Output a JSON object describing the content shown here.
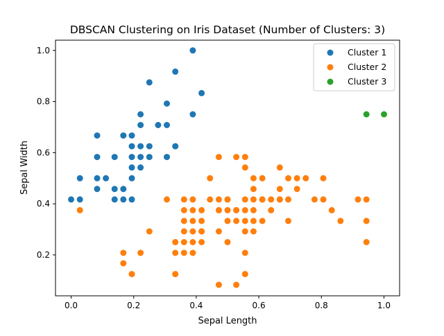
{
  "chart_data": {
    "type": "scatter",
    "title": "DBSCAN Clustering on Iris Dataset (Number of Clusters: 3)",
    "xlabel": "Sepal Length",
    "ylabel": "Sepal Width",
    "xlim": [
      -0.05,
      1.05
    ],
    "ylim": [
      0.04,
      1.04
    ],
    "xticks": [
      0.0,
      0.2,
      0.4,
      0.6,
      0.8,
      1.0
    ],
    "xtick_labels": [
      "0.0",
      "0.2",
      "0.4",
      "0.6",
      "0.8",
      "1.0"
    ],
    "yticks": [
      0.2,
      0.4,
      0.6,
      0.8,
      1.0
    ],
    "ytick_labels": [
      "0.2",
      "0.4",
      "0.6",
      "0.8",
      "1.0"
    ],
    "grid": false,
    "legend_position": "top-right",
    "series": [
      {
        "name": "Cluster 1",
        "color": "#1f77b4",
        "x": [
          0.389,
          0.417,
          0.333,
          0.25,
          0.306,
          0.389,
          0.222,
          0.222,
          0.278,
          0.306,
          0.083,
          0.167,
          0.194,
          0.194,
          0.222,
          0.25,
          0.333,
          0.0,
          0.028,
          0.028,
          0.083,
          0.083,
          0.083,
          0.111,
          0.139,
          0.139,
          0.139,
          0.167,
          0.167,
          0.194,
          0.194,
          0.194,
          0.194,
          0.222,
          0.222,
          0.25,
          0.306
        ],
        "y": [
          1.0,
          0.833,
          0.917,
          0.875,
          0.792,
          0.75,
          0.75,
          0.708,
          0.708,
          0.708,
          0.667,
          0.667,
          0.667,
          0.625,
          0.625,
          0.625,
          0.625,
          0.417,
          0.5,
          0.417,
          0.5,
          0.458,
          0.583,
          0.5,
          0.458,
          0.417,
          0.583,
          0.458,
          0.417,
          0.583,
          0.542,
          0.5,
          0.417,
          0.583,
          0.542,
          0.583,
          0.583
        ]
      },
      {
        "name": "Cluster 2",
        "color": "#ff7f0e",
        "x": [
          0.028,
          0.167,
          0.167,
          0.194,
          0.222,
          0.25,
          0.306,
          0.333,
          0.333,
          0.333,
          0.361,
          0.361,
          0.361,
          0.361,
          0.361,
          0.361,
          0.389,
          0.389,
          0.389,
          0.389,
          0.389,
          0.389,
          0.417,
          0.417,
          0.417,
          0.417,
          0.444,
          0.444,
          0.472,
          0.472,
          0.472,
          0.472,
          0.472,
          0.5,
          0.5,
          0.5,
          0.5,
          0.5,
          0.528,
          0.528,
          0.528,
          0.528,
          0.556,
          0.556,
          0.556,
          0.556,
          0.556,
          0.556,
          0.556,
          0.583,
          0.583,
          0.583,
          0.583,
          0.583,
          0.611,
          0.611,
          0.611,
          0.639,
          0.639,
          0.667,
          0.667,
          0.667,
          0.667,
          0.694,
          0.694,
          0.694,
          0.722,
          0.722,
          0.75,
          0.778,
          0.806,
          0.806,
          0.833,
          0.861,
          0.917,
          0.944,
          0.944,
          0.944,
          0.583,
          0.611,
          0.556,
          0.528,
          0.472,
          0.417
        ],
        "y": [
          0.375,
          0.208,
          0.167,
          0.125,
          0.208,
          0.292,
          0.417,
          0.25,
          0.208,
          0.125,
          0.417,
          0.375,
          0.333,
          0.292,
          0.25,
          0.208,
          0.417,
          0.375,
          0.333,
          0.292,
          0.25,
          0.208,
          0.333,
          0.292,
          0.25,
          0.292,
          0.5,
          0.417,
          0.583,
          0.417,
          0.375,
          0.292,
          0.083,
          0.417,
          0.375,
          0.333,
          0.25,
          0.417,
          0.583,
          0.375,
          0.333,
          0.083,
          0.583,
          0.542,
          0.375,
          0.333,
          0.292,
          0.208,
          0.125,
          0.5,
          0.458,
          0.375,
          0.333,
          0.292,
          0.5,
          0.417,
          0.333,
          0.417,
          0.375,
          0.542,
          0.458,
          0.417,
          0.417,
          0.5,
          0.417,
          0.333,
          0.5,
          0.458,
          0.5,
          0.417,
          0.5,
          0.417,
          0.375,
          0.333,
          0.417,
          0.417,
          0.333,
          0.25,
          0.417,
          0.417,
          0.417,
          0.375,
          0.375,
          0.375
        ]
      },
      {
        "name": "Cluster 3",
        "color": "#2ca02c",
        "x": [
          0.944,
          1.0
        ],
        "y": [
          0.75,
          0.75
        ]
      }
    ]
  }
}
